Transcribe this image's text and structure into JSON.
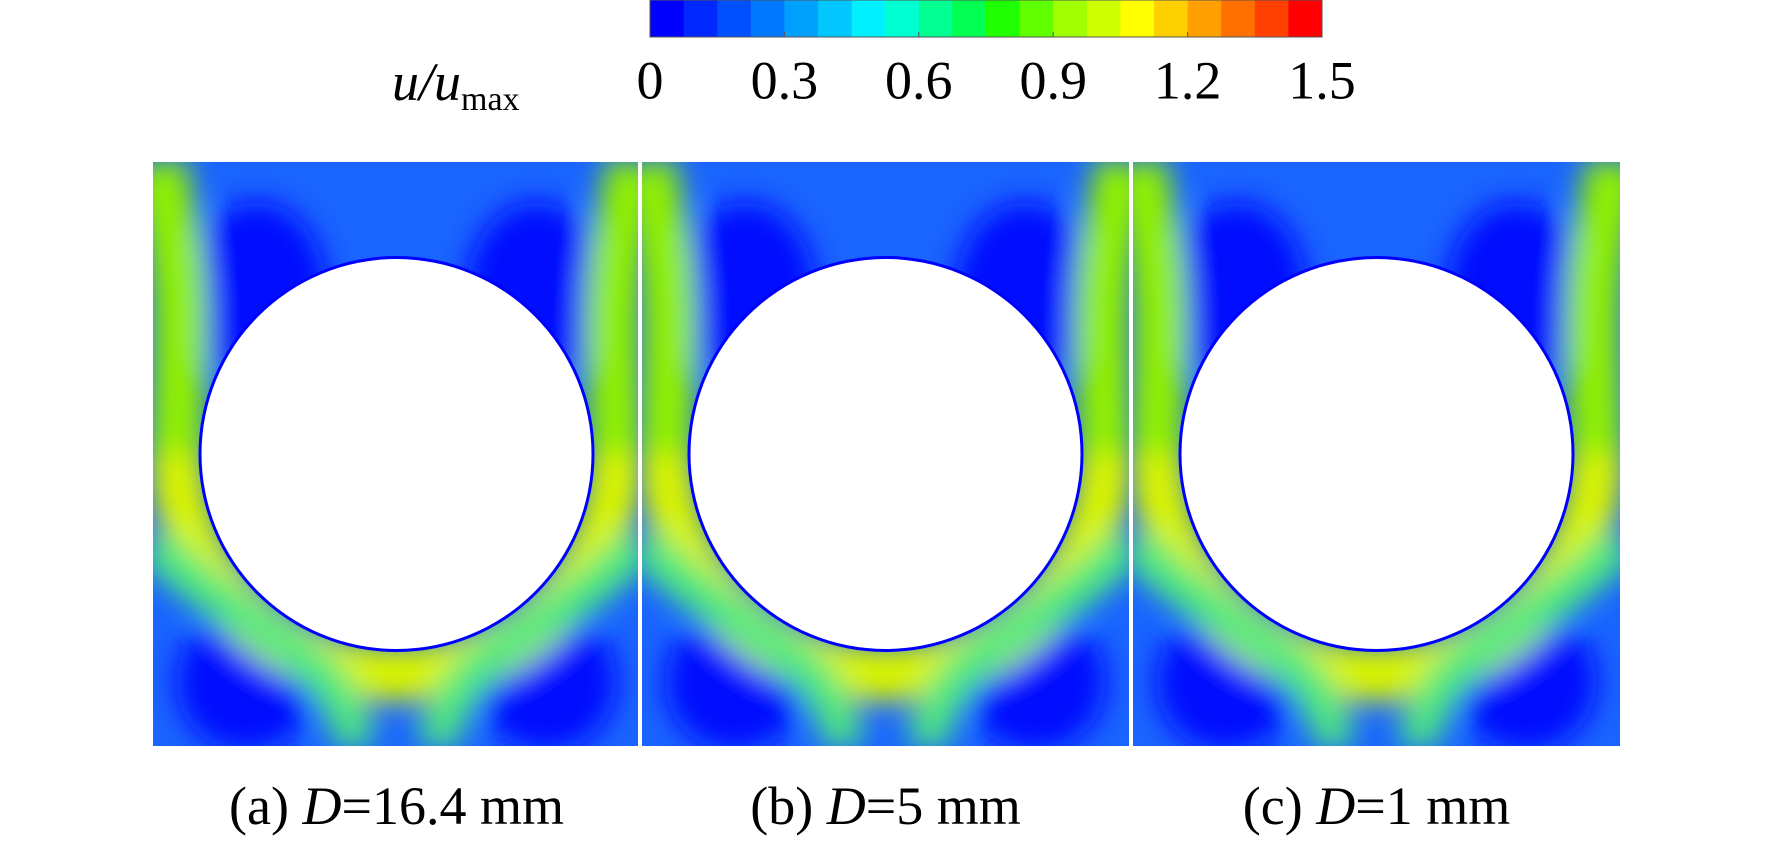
{
  "chart_data": {
    "type": "contour",
    "colorbar": {
      "label": {
        "var": "u/u",
        "sub": "max"
      },
      "range": [
        0,
        1.5
      ],
      "ticks": [
        0,
        0.3,
        0.6,
        0.9,
        1.2,
        1.5
      ],
      "colors": [
        "#0000ff",
        "#0028ff",
        "#0050ff",
        "#0078ff",
        "#00a0ff",
        "#00c8ff",
        "#00f0ff",
        "#00ffd0",
        "#00ff90",
        "#00ff50",
        "#20ff00",
        "#60ff00",
        "#a0ff00",
        "#d0ff00",
        "#ffff00",
        "#ffd000",
        "#ffa000",
        "#ff7000",
        "#ff4000",
        "#ff0000"
      ]
    },
    "panels": [
      {
        "prefix": "(a) ",
        "symbol": "D",
        "rest": "=16.4 mm"
      },
      {
        "prefix": "(b) ",
        "symbol": "D",
        "rest": "=5 mm"
      },
      {
        "prefix": "(c) ",
        "symbol": "D",
        "rest": "=1 mm"
      }
    ]
  }
}
